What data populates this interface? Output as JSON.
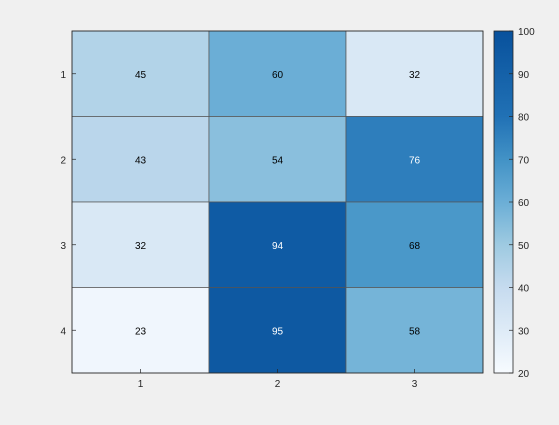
{
  "chart_data": {
    "type": "heatmap",
    "title": "",
    "xlabel": "",
    "ylabel": "",
    "x_categories": [
      "1",
      "2",
      "3"
    ],
    "y_categories": [
      "1",
      "2",
      "3",
      "4"
    ],
    "values": [
      [
        45,
        60,
        32
      ],
      [
        43,
        54,
        76
      ],
      [
        32,
        94,
        68
      ],
      [
        23,
        95,
        58
      ]
    ],
    "colorbar": {
      "min": 20,
      "max": 100,
      "ticks": [
        "20",
        "30",
        "40",
        "50",
        "60",
        "70",
        "80",
        "90",
        "100"
      ],
      "colormap": "blues",
      "low_color": "#f7fbff",
      "high_color": "#08519c"
    },
    "grid": true,
    "legend": "colorbar-right"
  },
  "colors": {
    "background": "#f0f0f0",
    "cell_border": "#555555",
    "axis": "#262626",
    "label_dark": "#000000",
    "label_light": "#ffffff"
  }
}
